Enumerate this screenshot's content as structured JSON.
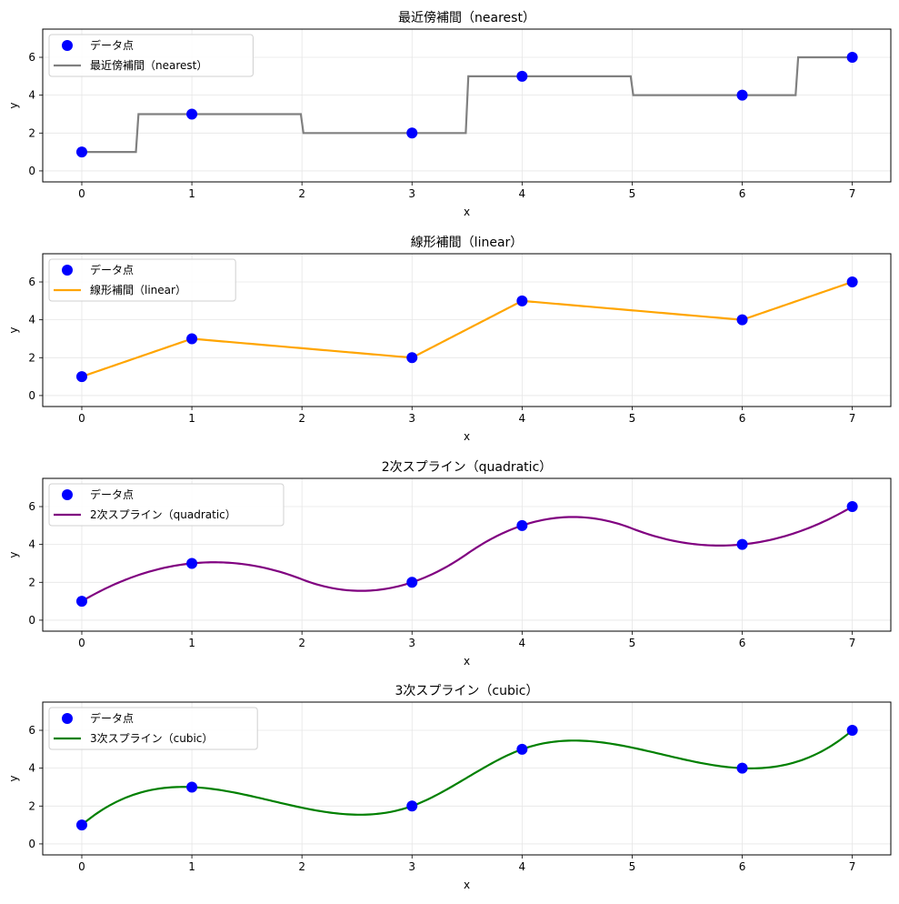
{
  "chart_data": [
    {
      "type": "line",
      "title": "最近傍補間（nearest）",
      "xlabel": "x",
      "ylabel": "y",
      "xlim": [
        -0.355,
        7.35
      ],
      "ylim": [
        -0.58,
        7.49
      ],
      "xticks": [
        0,
        1,
        2,
        3,
        4,
        5,
        6,
        7
      ],
      "yticks": [
        0,
        2,
        4,
        6
      ],
      "grid": true,
      "legend_position": "top-left",
      "method": "nearest",
      "points": {
        "name": "データ点",
        "x": [
          0,
          1,
          3,
          4,
          6,
          7
        ],
        "y": [
          1,
          3,
          2,
          5,
          4,
          6
        ],
        "color": "#0000ff"
      },
      "series": {
        "name": "最近傍補間（nearest）",
        "color": "#808080"
      }
    },
    {
      "type": "line",
      "title": "線形補間（linear）",
      "xlabel": "x",
      "ylabel": "y",
      "xlim": [
        -0.355,
        7.35
      ],
      "ylim": [
        -0.58,
        7.49
      ],
      "xticks": [
        0,
        1,
        2,
        3,
        4,
        5,
        6,
        7
      ],
      "yticks": [
        0,
        2,
        4,
        6
      ],
      "grid": true,
      "legend_position": "top-left",
      "method": "linear",
      "points": {
        "name": "データ点",
        "x": [
          0,
          1,
          3,
          4,
          6,
          7
        ],
        "y": [
          1,
          3,
          2,
          5,
          4,
          6
        ],
        "color": "#0000ff"
      },
      "series": {
        "name": "線形補間（linear）",
        "color": "#ffa500"
      }
    },
    {
      "type": "line",
      "title": "2次スプライン（quadratic）",
      "xlabel": "x",
      "ylabel": "y",
      "xlim": [
        -0.355,
        7.35
      ],
      "ylim": [
        -0.58,
        7.49
      ],
      "xticks": [
        0,
        1,
        2,
        3,
        4,
        5,
        6,
        7
      ],
      "yticks": [
        0,
        2,
        4,
        6
      ],
      "grid": true,
      "legend_position": "top-left",
      "method": "quadratic",
      "points": {
        "name": "データ点",
        "x": [
          0,
          1,
          3,
          4,
          6,
          7
        ],
        "y": [
          1,
          3,
          2,
          5,
          4,
          6
        ],
        "color": "#0000ff"
      },
      "series": {
        "name": "2次スプライン（quadratic）",
        "color": "#800080"
      }
    },
    {
      "type": "line",
      "title": "3次スプライン（cubic）",
      "xlabel": "x",
      "ylabel": "y",
      "xlim": [
        -0.355,
        7.35
      ],
      "ylim": [
        -0.58,
        7.49
      ],
      "xticks": [
        0,
        1,
        2,
        3,
        4,
        5,
        6,
        7
      ],
      "yticks": [
        0,
        2,
        4,
        6
      ],
      "grid": true,
      "legend_position": "top-left",
      "method": "cubic",
      "points": {
        "name": "データ点",
        "x": [
          0,
          1,
          3,
          4,
          6,
          7
        ],
        "y": [
          1,
          3,
          2,
          5,
          4,
          6
        ],
        "color": "#0000ff"
      },
      "series": {
        "name": "3次スプライン（cubic）",
        "color": "#008000"
      }
    }
  ]
}
